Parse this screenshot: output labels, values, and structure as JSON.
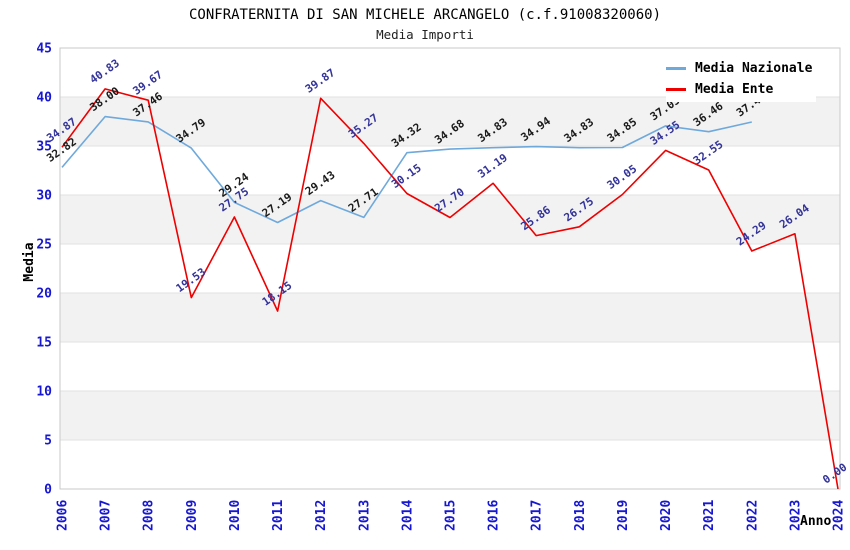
{
  "title": "CONFRATERNITA DI SAN MICHELE ARCANGELO (c.f.91008320060)",
  "subtitle": "Media Importi",
  "chart_data": {
    "type": "line",
    "x": [
      2006,
      2007,
      2008,
      2009,
      2010,
      2011,
      2012,
      2013,
      2014,
      2015,
      2016,
      2017,
      2018,
      2019,
      2020,
      2021,
      2022,
      2023,
      2024
    ],
    "series": [
      {
        "name": "Media Nazionale",
        "color": "#6FA9DC",
        "label_color": "#1A1A1A",
        "values": [
          32.82,
          38.0,
          37.46,
          34.79,
          29.24,
          27.19,
          29.43,
          27.71,
          34.32,
          34.68,
          34.83,
          34.94,
          34.83,
          34.85,
          37.05,
          36.46,
          37.45,
          null,
          null
        ]
      },
      {
        "name": "Media Ente",
        "color": "#EE0000",
        "label_color": "#333399",
        "values": [
          34.87,
          40.83,
          39.67,
          19.53,
          27.75,
          18.15,
          39.87,
          35.27,
          30.15,
          27.7,
          31.19,
          25.86,
          26.75,
          30.05,
          34.55,
          32.55,
          24.29,
          26.04,
          0.0
        ]
      }
    ],
    "xlabel": "Anno",
    "ylabel": "Media",
    "ylim": [
      0,
      45
    ],
    "ytick_step": 5,
    "grid": "horizontal-bands",
    "legend_position": "top-right"
  },
  "colors": {
    "axis_tick": "#1717D1",
    "band": "#F2F2F2",
    "gridline": "#E2E2E2",
    "plot_border": "#C9C9C9",
    "title_text": "#000000"
  }
}
